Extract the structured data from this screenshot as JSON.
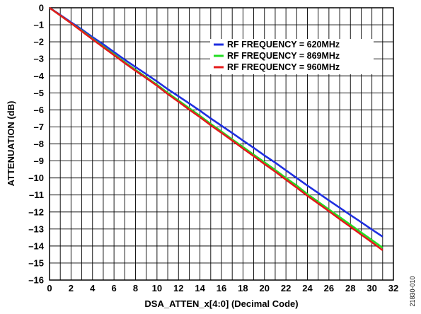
{
  "chart_data": {
    "type": "line",
    "xlabel": "DSA_ATTEN_x[4:0] (Decimal Code)",
    "ylabel": "ATTENUATION (dB)",
    "xlim": [
      0,
      32
    ],
    "ylim": [
      -16,
      0
    ],
    "x_ticks": [
      "0",
      "2",
      "4",
      "6",
      "8",
      "10",
      "12",
      "14",
      "16",
      "18",
      "20",
      "22",
      "24",
      "26",
      "28",
      "30",
      "32"
    ],
    "y_ticks": [
      "0",
      "–1",
      "–2",
      "–3",
      "–4",
      "–5",
      "–6",
      "–7",
      "–8",
      "–9",
      "–10",
      "–11",
      "–12",
      "–13",
      "–14",
      "–15",
      "–16"
    ],
    "grid": true,
    "legend_position": "top-right",
    "x": [
      0,
      1,
      2,
      3,
      4,
      5,
      6,
      7,
      8,
      9,
      10,
      11,
      12,
      13,
      14,
      15,
      16,
      17,
      18,
      19,
      20,
      21,
      22,
      23,
      24,
      25,
      26,
      27,
      28,
      29,
      30,
      31
    ],
    "series": [
      {
        "name": "RF FREQUENCY = 620MHz",
        "color": "#1f2fe0",
        "values": [
          0,
          -0.42,
          -0.85,
          -1.27,
          -1.72,
          -2.15,
          -2.6,
          -3.05,
          -3.48,
          -3.9,
          -4.33,
          -4.78,
          -5.2,
          -5.62,
          -6.05,
          -6.5,
          -6.93,
          -7.36,
          -7.8,
          -8.23,
          -8.68,
          -9.1,
          -9.55,
          -10.0,
          -10.45,
          -10.88,
          -11.32,
          -11.75,
          -12.18,
          -12.6,
          -13.03,
          -13.45
        ]
      },
      {
        "name": "RF FREQUENCY = 869MHz",
        "color": "#22dd22",
        "values": [
          0,
          -0.45,
          -0.9,
          -1.35,
          -1.82,
          -2.28,
          -2.73,
          -3.2,
          -3.65,
          -4.08,
          -4.52,
          -5.0,
          -5.45,
          -5.9,
          -6.35,
          -6.82,
          -7.27,
          -7.73,
          -8.18,
          -8.63,
          -9.08,
          -9.53,
          -10.0,
          -10.45,
          -10.95,
          -11.4,
          -11.85,
          -12.3,
          -12.75,
          -13.2,
          -13.65,
          -14.1
        ]
      },
      {
        "name": "RF FREQUENCY = 960MHz",
        "color": "#e41a1a",
        "values": [
          0,
          -0.45,
          -0.9,
          -1.38,
          -1.85,
          -2.32,
          -2.78,
          -3.25,
          -3.7,
          -4.13,
          -4.58,
          -5.07,
          -5.52,
          -5.98,
          -6.43,
          -6.9,
          -7.35,
          -7.8,
          -8.27,
          -8.72,
          -9.18,
          -9.63,
          -10.1,
          -10.57,
          -11.05,
          -11.5,
          -11.95,
          -12.42,
          -12.87,
          -13.33,
          -13.78,
          -14.25
        ]
      }
    ]
  },
  "figure_id": "21830-010"
}
